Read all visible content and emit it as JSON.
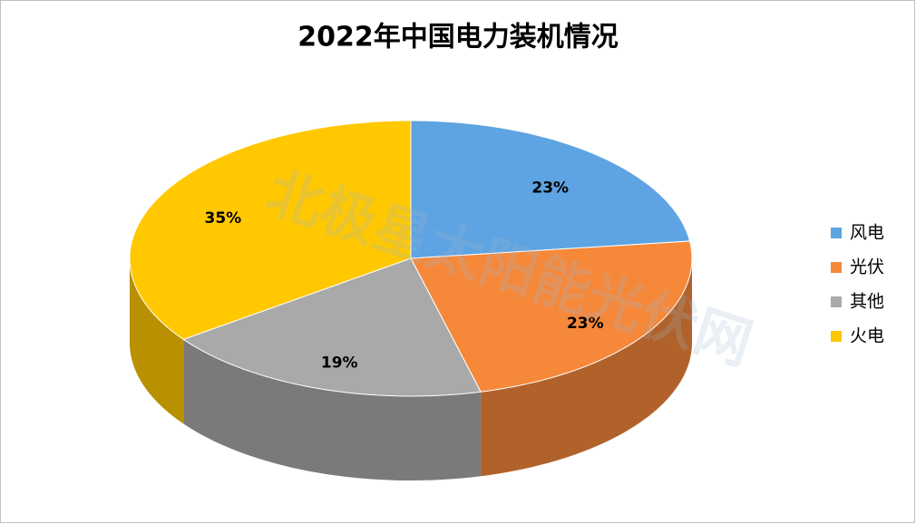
{
  "chart_data": {
    "type": "pie",
    "title": "2022年中国电力装机情况",
    "categories": [
      "风电",
      "光伏",
      "其他",
      "火电"
    ],
    "values": [
      23,
      23,
      19,
      35
    ],
    "value_labels": [
      "23%",
      "23%",
      "19%",
      "35%"
    ],
    "colors": [
      "#5ea3e2",
      "#f6883a",
      "#a9a9a9",
      "#ffc800"
    ],
    "legend": "right",
    "watermark": "北极星太阳能光伏网"
  }
}
